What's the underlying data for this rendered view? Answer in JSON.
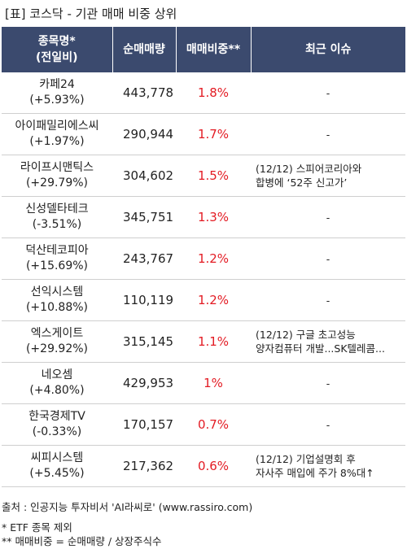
{
  "title": "[표] 코스닥 - 기관 매매 비중 상위",
  "headers": {
    "name_line1": "종목명*",
    "name_line2": "(전일비)",
    "volume": "순매매량",
    "ratio": "매매비중**",
    "issue": "최근 이슈"
  },
  "rows": [
    {
      "name": "카페24",
      "change": "(+5.93%)",
      "volume": "443,778",
      "ratio": "1.8%",
      "issue": [
        "-"
      ]
    },
    {
      "name": "아이패밀리에스씨",
      "change": "(+1.97%)",
      "volume": "290,944",
      "ratio": "1.7%",
      "issue": [
        "-"
      ]
    },
    {
      "name": "라이프시맨틱스",
      "change": "(+29.79%)",
      "volume": "304,602",
      "ratio": "1.5%",
      "issue": [
        "(12/12) 스피어코리아와",
        "합병에 ‘52주 신고가’"
      ]
    },
    {
      "name": "신성델타테크",
      "change": "(-3.51%)",
      "volume": "345,751",
      "ratio": "1.3%",
      "issue": [
        "-"
      ]
    },
    {
      "name": "덕산테코피아",
      "change": "(+15.69%)",
      "volume": "243,767",
      "ratio": "1.2%",
      "issue": [
        "-"
      ]
    },
    {
      "name": "선익시스템",
      "change": "(+10.88%)",
      "volume": "110,119",
      "ratio": "1.2%",
      "issue": [
        "-"
      ]
    },
    {
      "name": "엑스게이트",
      "change": "(+29.92%)",
      "volume": "315,145",
      "ratio": "1.1%",
      "issue": [
        "(12/12) 구글 초고성능",
        "양자컴퓨터 개발...SK텔레콤..."
      ]
    },
    {
      "name": "네오셈",
      "change": "(+4.80%)",
      "volume": "429,953",
      "ratio": "1%",
      "issue": [
        "-"
      ]
    },
    {
      "name": "한국경제TV",
      "change": "(-0.33%)",
      "volume": "170,157",
      "ratio": "0.7%",
      "issue": [
        "-"
      ]
    },
    {
      "name": "씨피시스템",
      "change": "(+5.45%)",
      "volume": "217,362",
      "ratio": "0.6%",
      "issue": [
        "(12/12) 기업설명회 후",
        "자사주 매입에 주가 8%대↑"
      ]
    }
  ],
  "footer": {
    "source": "출처 : 인공지능 투자비서 'AI라씨로' (www.rassiro.com)",
    "note1": "* ETF 종목 제외",
    "note2": "** 매매비중 = 순매매량 / 상장주식수"
  },
  "colors": {
    "header_bg": "#3b4a6e",
    "ratio_text": "#e31b23"
  }
}
